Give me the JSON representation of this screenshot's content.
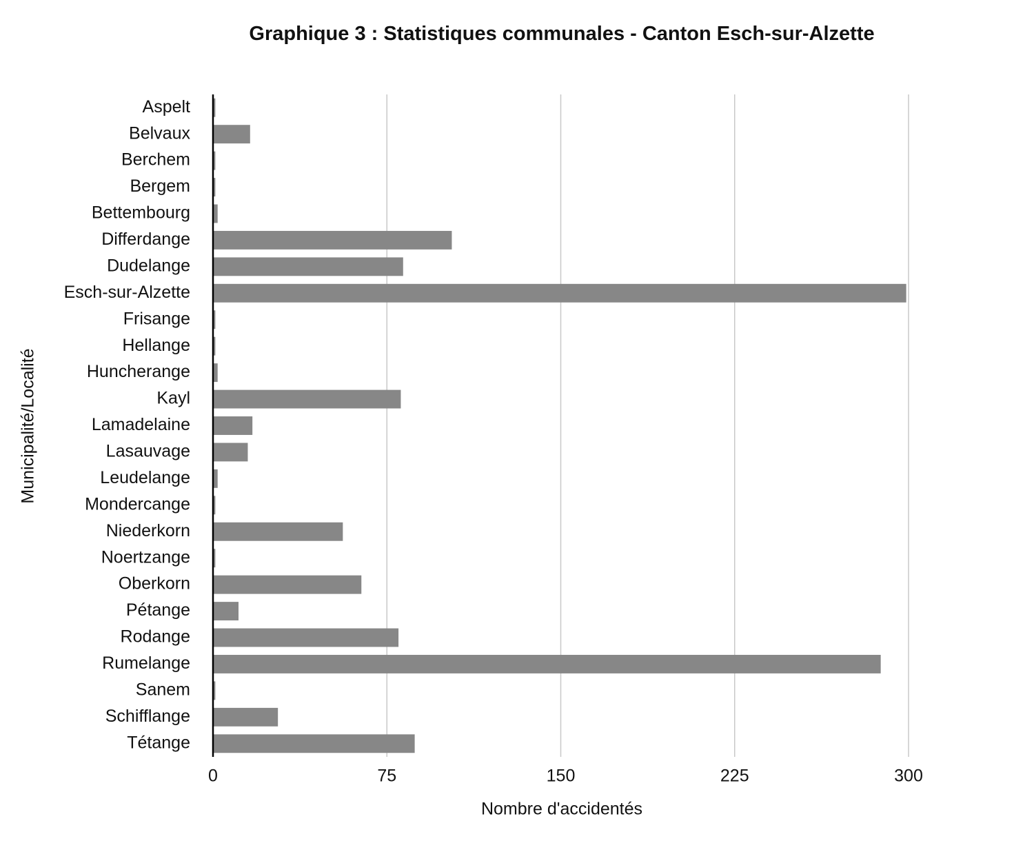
{
  "chart_data": {
    "type": "bar",
    "orientation": "horizontal",
    "title": "Graphique 3 : Statistiques communales - Canton Esch-sur-Alzette",
    "x_label": "Nombre d'accidentés",
    "y_label": "Municipalité/Localité",
    "categories": [
      "Aspelt",
      "Belvaux",
      "Berchem",
      "Bergem",
      "Bettembourg",
      "Differdange",
      "Dudelange",
      "Esch-sur-Alzette",
      "Frisange",
      "Hellange",
      "Huncherange",
      "Kayl",
      "Lamadelaine",
      "Lasauvage",
      "Leudelange",
      "Mondercange",
      "Niederkorn",
      "Noertzange",
      "Oberkorn",
      "Pétange",
      "Rodange",
      "Rumelange",
      "Sanem",
      "Schifflange",
      "Tétange"
    ],
    "values": [
      1,
      16,
      1,
      1,
      2,
      103,
      82,
      299,
      1,
      1,
      2,
      81,
      17,
      15,
      2,
      1,
      56,
      1,
      64,
      11,
      80,
      288,
      1,
      28,
      87
    ],
    "color": "#878787",
    "xlim": [
      0,
      300
    ],
    "xticks": [
      0,
      75,
      150,
      225,
      300
    ],
    "grid": true
  }
}
